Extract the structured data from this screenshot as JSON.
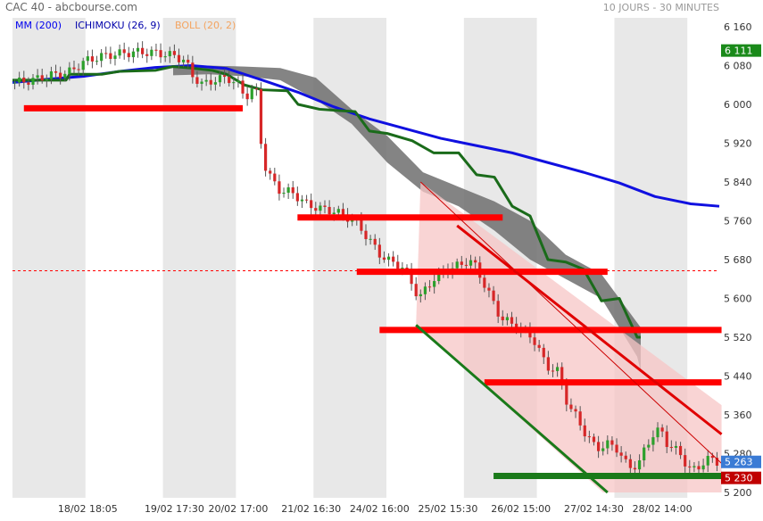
{
  "header": {
    "title": "CAC 40 - abcbourse.com",
    "period": "10 JOURS - 30 MINUTES"
  },
  "legend": [
    {
      "label": "MM (200)",
      "color": "#0000ee"
    },
    {
      "label": "ICHIMOKU (26, 9)",
      "color": "#0000aa"
    },
    {
      "label": "BOLL (20, 2)",
      "color": "#f4a460"
    }
  ],
  "price_tags": [
    {
      "label": "6 111",
      "value": 6111,
      "color": "#1a8a1a"
    },
    {
      "label": "5 263",
      "value": 5263,
      "color": "#3a7bd5"
    },
    {
      "label": "5 230",
      "value": 5230,
      "color": "#c00000"
    }
  ],
  "chart_data": {
    "type": "candlestick",
    "title": "CAC 40",
    "subtitle": "10 JOURS - 30 MINUTES",
    "ylim": [
      5200,
      6180
    ],
    "y_ticks": [
      6160,
      6080,
      6000,
      5920,
      5840,
      5760,
      5680,
      5600,
      5520,
      5440,
      5360,
      5280,
      5200
    ],
    "y_tick_labels": [
      "6 160",
      "6 080",
      "6 000",
      "5 920",
      "5 840",
      "5 760",
      "5 680",
      "5 600",
      "5 520",
      "5 440",
      "5 360",
      "5 280",
      "5 200"
    ],
    "x_ticks": [
      "18/02 18:05",
      "19/02 17:30",
      "20/02 17:00",
      "21/02 16:30",
      "24/02 16:00",
      "25/02 15:30",
      "26/02 15:00",
      "27/02 14:30",
      "28/02 14:00"
    ],
    "n_bars": 155,
    "x_tick_bars": [
      16,
      35,
      49,
      65,
      80,
      95,
      111,
      127,
      142
    ],
    "sessions": [
      {
        "start": 0,
        "end": 16
      },
      {
        "start": 16,
        "end": 33
      },
      {
        "start": 33,
        "end": 49
      },
      {
        "start": 49,
        "end": 66
      },
      {
        "start": 66,
        "end": 82
      },
      {
        "start": 82,
        "end": 99
      },
      {
        "start": 99,
        "end": 115
      },
      {
        "start": 115,
        "end": 132
      },
      {
        "start": 132,
        "end": 148
      },
      {
        "start": 148,
        "end": 155
      }
    ],
    "close_path": [
      [
        0,
        6045
      ],
      [
        5,
        6050
      ],
      [
        10,
        6060
      ],
      [
        15,
        6065
      ],
      [
        20,
        6090
      ],
      [
        25,
        6100
      ],
      [
        30,
        6105
      ],
      [
        35,
        6108
      ],
      [
        40,
        6106
      ],
      [
        45,
        6100
      ],
      [
        48,
        6090
      ],
      [
        50,
        6060
      ],
      [
        53,
        6040
      ],
      [
        56,
        6050
      ],
      [
        60,
        6055
      ],
      [
        63,
        6040
      ],
      [
        65,
        6015
      ],
      [
        67,
        6030
      ],
      [
        68,
        6035
      ],
      [
        70,
        5880
      ],
      [
        72,
        5850
      ],
      [
        75,
        5820
      ],
      [
        78,
        5820
      ],
      [
        82,
        5795
      ],
      [
        86,
        5785
      ],
      [
        90,
        5780
      ],
      [
        93,
        5770
      ],
      [
        96,
        5760
      ],
      [
        100,
        5720
      ],
      [
        103,
        5690
      ],
      [
        106,
        5675
      ],
      [
        108,
        5670
      ],
      [
        110,
        5660
      ],
      [
        114,
        5600
      ],
      [
        118,
        5640
      ],
      [
        122,
        5660
      ],
      [
        126,
        5670
      ],
      [
        128,
        5680
      ],
      [
        130,
        5665
      ],
      [
        133,
        5620
      ],
      [
        137,
        5560
      ],
      [
        142,
        5540
      ],
      [
        146,
        5520
      ],
      [
        150,
        5460
      ],
      [
        153,
        5450
      ],
      [
        156,
        5380
      ],
      [
        158,
        5360
      ],
      [
        161,
        5320
      ],
      [
        164,
        5290
      ],
      [
        167,
        5300
      ],
      [
        170,
        5290
      ],
      [
        173,
        5250
      ],
      [
        176,
        5260
      ],
      [
        178,
        5295
      ],
      [
        180,
        5320
      ],
      [
        182,
        5330
      ],
      [
        184,
        5300
      ],
      [
        186,
        5290
      ],
      [
        188,
        5275
      ],
      [
        190,
        5250
      ],
      [
        192,
        5245
      ],
      [
        195,
        5270
      ],
      [
        198,
        5263
      ]
    ],
    "ma200": [
      [
        0,
        6045
      ],
      [
        10,
        6052
      ],
      [
        20,
        6058
      ],
      [
        30,
        6068
      ],
      [
        40,
        6076
      ],
      [
        50,
        6080
      ],
      [
        60,
        6074
      ],
      [
        70,
        6050
      ],
      [
        80,
        6025
      ],
      [
        90,
        5995
      ],
      [
        100,
        5970
      ],
      [
        110,
        5950
      ],
      [
        120,
        5930
      ],
      [
        130,
        5915
      ],
      [
        140,
        5900
      ],
      [
        150,
        5880
      ],
      [
        160,
        5860
      ],
      [
        170,
        5838
      ],
      [
        180,
        5810
      ],
      [
        190,
        5795
      ],
      [
        198,
        5790
      ]
    ],
    "ichimoku_kijun": [
      [
        0,
        6050
      ],
      [
        15,
        6050
      ],
      [
        16,
        6062
      ],
      [
        25,
        6062
      ],
      [
        30,
        6068
      ],
      [
        40,
        6070
      ],
      [
        45,
        6078
      ],
      [
        50,
        6075
      ],
      [
        56,
        6070
      ],
      [
        60,
        6062
      ],
      [
        65,
        6040
      ],
      [
        70,
        6030
      ],
      [
        77,
        6028
      ],
      [
        80,
        6000
      ],
      [
        86,
        5990
      ],
      [
        96,
        5985
      ],
      [
        100,
        5945
      ],
      [
        105,
        5940
      ],
      [
        112,
        5925
      ],
      [
        118,
        5900
      ],
      [
        125,
        5900
      ],
      [
        130,
        5855
      ],
      [
        135,
        5850
      ],
      [
        140,
        5790
      ],
      [
        145,
        5770
      ],
      [
        150,
        5680
      ],
      [
        155,
        5675
      ],
      [
        160,
        5660
      ],
      [
        165,
        5595
      ],
      [
        170,
        5600
      ],
      [
        175,
        5520
      ],
      [
        176,
        5520
      ]
    ],
    "ichimoku_cloud_upper": [
      [
        45,
        6078
      ],
      [
        55,
        6080
      ],
      [
        65,
        6078
      ],
      [
        75,
        6075
      ],
      [
        85,
        6055
      ],
      [
        95,
        5990
      ],
      [
        105,
        5935
      ],
      [
        115,
        5860
      ],
      [
        125,
        5830
      ],
      [
        135,
        5800
      ],
      [
        145,
        5760
      ],
      [
        155,
        5690
      ],
      [
        165,
        5650
      ],
      [
        175,
        5550
      ],
      [
        176,
        5540
      ]
    ],
    "ichimoku_cloud_lower": [
      [
        45,
        6060
      ],
      [
        55,
        6062
      ],
      [
        65,
        6058
      ],
      [
        75,
        6050
      ],
      [
        85,
        6010
      ],
      [
        95,
        5960
      ],
      [
        105,
        5880
      ],
      [
        115,
        5820
      ],
      [
        125,
        5790
      ],
      [
        135,
        5740
      ],
      [
        145,
        5680
      ],
      [
        155,
        5640
      ],
      [
        165,
        5600
      ],
      [
        175,
        5480
      ],
      [
        176,
        5450
      ]
    ],
    "support_resistance": [
      {
        "value": 5992,
        "start": 2,
        "end": 50
      },
      {
        "value": 5767,
        "start": 62,
        "end": 107
      },
      {
        "value": 5655,
        "start": 75,
        "end": 130
      },
      {
        "value": 5535,
        "start": 80,
        "end": 155
      },
      {
        "value": 5427,
        "start": 103,
        "end": 155
      }
    ],
    "support_green": {
      "value": 5234,
      "start": 105,
      "end": 155
    },
    "reference_dotted": 5657,
    "channel_lines": [
      {
        "points": [
          [
            89,
            5840
          ],
          [
            155,
            5260
          ]
        ],
        "color": "#cc0000",
        "width": 1
      },
      {
        "points": [
          [
            88,
            5545
          ],
          [
            130,
            5200
          ]
        ],
        "color": "#1a7a1a",
        "width": 3
      },
      {
        "points": [
          [
            97,
            5750
          ],
          [
            155,
            5320
          ]
        ],
        "color": "#e00000",
        "width": 3
      }
    ],
    "channel_fill": [
      [
        89,
        5840
      ],
      [
        155,
        5380
      ],
      [
        155,
        5200
      ],
      [
        129,
        5200
      ],
      [
        88,
        5545
      ]
    ]
  }
}
